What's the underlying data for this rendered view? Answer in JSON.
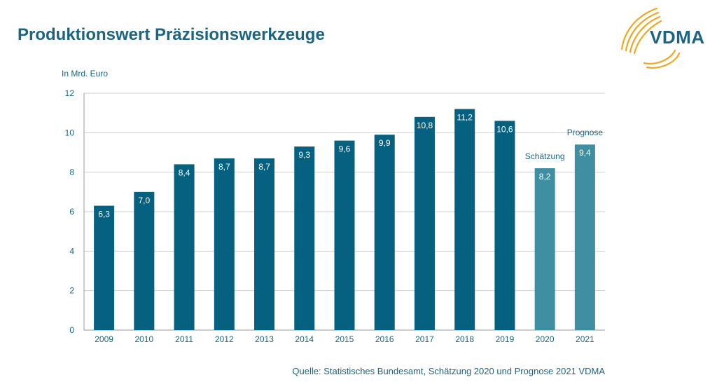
{
  "page": {
    "title": "Produktionswert Präzisionswerkzeuge",
    "logo_text": "VDMA",
    "source": "Quelle: Statistisches Bundesamt, Schätzung 2020 und Prognose 2021 VDMA"
  },
  "colors": {
    "bar_actual": "#066180",
    "bar_forecast": "#3f8ea2",
    "title": "#1c6483",
    "logo_arcs": "#f0a71d",
    "grid": "#cfcfcf"
  },
  "chart_data": {
    "type": "bar",
    "ylabel": "In Mrd. Euro",
    "ylim": [
      0,
      12
    ],
    "yticks": [
      0,
      2,
      4,
      6,
      8,
      10,
      12
    ],
    "grid": true,
    "categories": [
      "2009",
      "2010",
      "2011",
      "2012",
      "2013",
      "2014",
      "2015",
      "2016",
      "2017",
      "2018",
      "2019",
      "2020",
      "2021"
    ],
    "values": [
      6.3,
      7.0,
      8.4,
      8.7,
      8.7,
      9.3,
      9.6,
      9.9,
      10.8,
      11.2,
      10.6,
      8.2,
      9.4
    ],
    "value_labels": [
      "6,3",
      "7,0",
      "8,4",
      "8,7",
      "8,7",
      "9,3",
      "9,6",
      "9,9",
      "10,8",
      "11,2",
      "10,6",
      "8,2",
      "9,4"
    ],
    "bar_kind": [
      "actual",
      "actual",
      "actual",
      "actual",
      "actual",
      "actual",
      "actual",
      "actual",
      "actual",
      "actual",
      "actual",
      "forecast",
      "forecast"
    ],
    "annotations": [
      {
        "category": "2020",
        "text": "Schätzung"
      },
      {
        "category": "2021",
        "text": "Prognose"
      }
    ]
  }
}
